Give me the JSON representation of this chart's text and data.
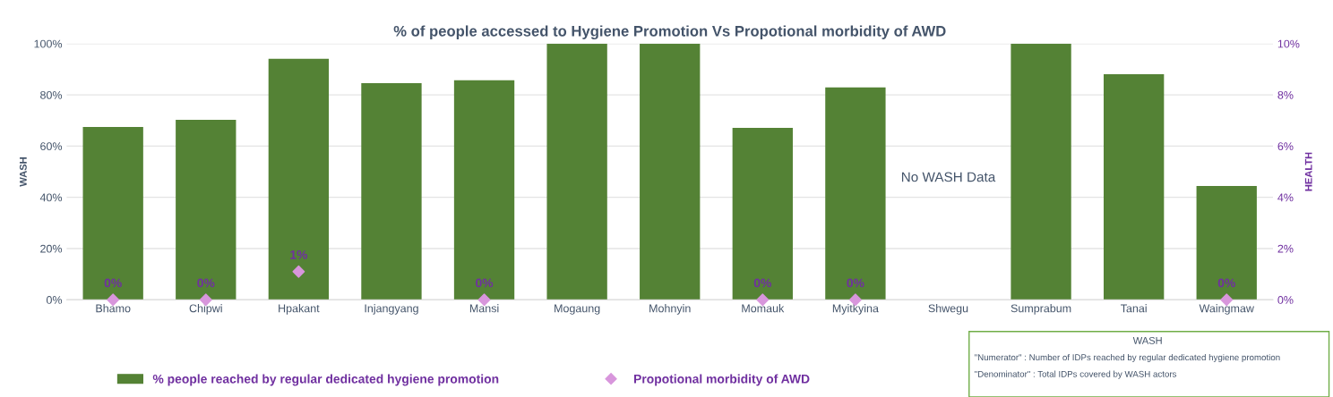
{
  "chart_data": {
    "type": "bar",
    "title": "% of people accessed to Hygiene Promotion Vs Propotional morbidity of AWD",
    "categories": [
      "Bhamo",
      "Chipwi",
      "Hpakant",
      "Injangyang",
      "Mansi",
      "Mogaung",
      "Mohnyin",
      "Momauk",
      "Myitkyina",
      "Shwegu",
      "Sumprabum",
      "Tanai",
      "Waingmaw"
    ],
    "ylabel": "WASH",
    "y2label": "HEALTH",
    "series": [
      {
        "name": "% people reached by regular dedicated hygiene promotion",
        "color": "#548235",
        "values": [
          67.5,
          70.3,
          94.1,
          84.6,
          85.7,
          100,
          100,
          67.1,
          82.9,
          null,
          100,
          88.1,
          44.4
        ]
      },
      {
        "name": "Propotional morbidity of AWD",
        "type": "scatter",
        "axis": "y2",
        "color": "#d896dc",
        "marker": "diamond",
        "values": [
          0,
          0,
          1.1,
          null,
          0,
          null,
          null,
          0,
          0,
          null,
          null,
          null,
          0
        ],
        "value_labels": [
          "0%",
          "0%",
          "1%",
          null,
          "0%",
          null,
          null,
          "0%",
          "0%",
          null,
          null,
          null,
          "0%"
        ]
      }
    ],
    "ylim": [
      0,
      100
    ],
    "yticks": [
      {
        "value": 0,
        "label": "0%"
      },
      {
        "value": 20,
        "label": "20%"
      },
      {
        "value": 40,
        "label": "40%"
      },
      {
        "value": 60,
        "label": "60%"
      },
      {
        "value": 80,
        "label": "80%"
      },
      {
        "value": 100,
        "label": "100%"
      }
    ],
    "y2lim": [
      0,
      10
    ],
    "y2ticks": [
      {
        "value": 0,
        "label": "0%"
      },
      {
        "value": 2,
        "label": "2%"
      },
      {
        "value": 4,
        "label": "4%"
      },
      {
        "value": 6,
        "label": "6%"
      },
      {
        "value": 8,
        "label": "8%"
      },
      {
        "value": 10,
        "label": "10%"
      }
    ],
    "grid": "y",
    "legend": "bottom",
    "annotations": [
      "No WASH Data",
      "WASH",
      "\"Numerator\" : Number of IDPs reached by regular dedicated hygiene promotion",
      "\"Denominator\" : Total IDPs covered by WASH actors"
    ]
  }
}
